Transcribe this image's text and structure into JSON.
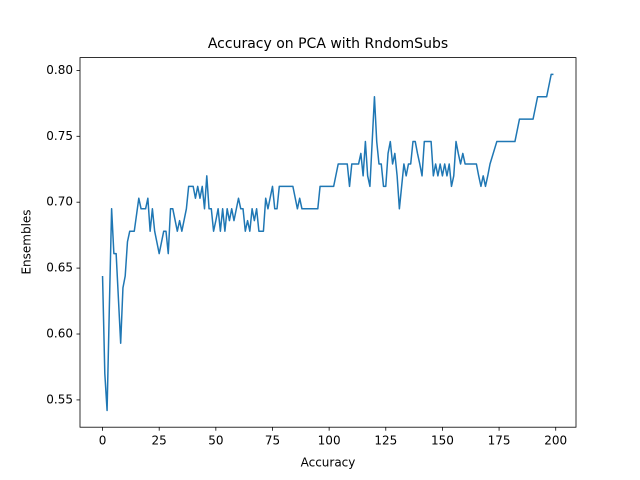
{
  "chart_data": {
    "type": "line",
    "title": "Accuracy on PCA with RndomSubs",
    "x_label": "Accuracy",
    "y_label": "Ensembles",
    "grid": false,
    "xlim": [
      -9.95,
      208.95
    ],
    "ylim": [
      0.5293,
      0.8097
    ],
    "xticks": [
      0,
      25,
      50,
      75,
      100,
      125,
      150,
      175,
      200
    ],
    "yticks": [
      0.55,
      {
        "value": 0.6,
        "label": "0.60"
      },
      0.65,
      {
        "value": 0.7,
        "label": "0.70"
      },
      0.75,
      {
        "value": 0.8,
        "label": "0.80"
      }
    ],
    "x": [
      0,
      1,
      2,
      3,
      4,
      5,
      6,
      8,
      9,
      10,
      11,
      12,
      14,
      16,
      17,
      19,
      20,
      21,
      22,
      23,
      25,
      27,
      28,
      29,
      30,
      31,
      33,
      34,
      35,
      37,
      38,
      40,
      41,
      42,
      43,
      44,
      45,
      46,
      47,
      48,
      49,
      50,
      51,
      52,
      53,
      54,
      55,
      56,
      57,
      58,
      60,
      61,
      62,
      63,
      64,
      65,
      66,
      67,
      68,
      69,
      71,
      72,
      73,
      75,
      76,
      77,
      78,
      84,
      86,
      87,
      88,
      95,
      96,
      102,
      104,
      108,
      109,
      110,
      113,
      114,
      115,
      116,
      117,
      118,
      120,
      121,
      122,
      123,
      124,
      125,
      126,
      127,
      128,
      129,
      130,
      131,
      132,
      133,
      134,
      135,
      136,
      137,
      138,
      139,
      140,
      141,
      142,
      145,
      146,
      147,
      148,
      149,
      150,
      151,
      152,
      153,
      154,
      155,
      156,
      157,
      158,
      159,
      160,
      165,
      166,
      167,
      168,
      169,
      170,
      171,
      174,
      182,
      184,
      190,
      192,
      196,
      198,
      199
    ],
    "series": [
      {
        "name": "Accuracy",
        "color": "#1f77b4",
        "values": [
          0.644,
          0.57,
          0.542,
          0.62,
          0.695,
          0.661,
          0.661,
          0.593,
          0.635,
          0.644,
          0.67,
          0.678,
          0.678,
          0.703,
          0.695,
          0.695,
          0.703,
          0.678,
          0.695,
          0.678,
          0.661,
          0.678,
          0.678,
          0.661,
          0.695,
          0.695,
          0.678,
          0.686,
          0.678,
          0.695,
          0.712,
          0.712,
          0.703,
          0.712,
          0.703,
          0.712,
          0.695,
          0.72,
          0.695,
          0.695,
          0.678,
          0.686,
          0.695,
          0.678,
          0.695,
          0.678,
          0.695,
          0.686,
          0.695,
          0.686,
          0.703,
          0.695,
          0.695,
          0.678,
          0.686,
          0.678,
          0.695,
          0.686,
          0.695,
          0.678,
          0.678,
          0.703,
          0.695,
          0.712,
          0.695,
          0.695,
          0.712,
          0.712,
          0.695,
          0.703,
          0.695,
          0.695,
          0.712,
          0.712,
          0.729,
          0.729,
          0.712,
          0.729,
          0.729,
          0.737,
          0.72,
          0.746,
          0.72,
          0.712,
          0.78,
          0.746,
          0.729,
          0.729,
          0.712,
          0.712,
          0.737,
          0.746,
          0.729,
          0.737,
          0.72,
          0.695,
          0.712,
          0.729,
          0.72,
          0.729,
          0.729,
          0.746,
          0.746,
          0.737,
          0.729,
          0.72,
          0.746,
          0.746,
          0.72,
          0.729,
          0.72,
          0.729,
          0.72,
          0.729,
          0.72,
          0.729,
          0.712,
          0.72,
          0.746,
          0.737,
          0.729,
          0.737,
          0.729,
          0.729,
          0.72,
          0.712,
          0.72,
          0.712,
          0.72,
          0.729,
          0.746,
          0.746,
          0.763,
          0.763,
          0.78,
          0.78,
          0.797,
          0.797
        ]
      }
    ]
  }
}
